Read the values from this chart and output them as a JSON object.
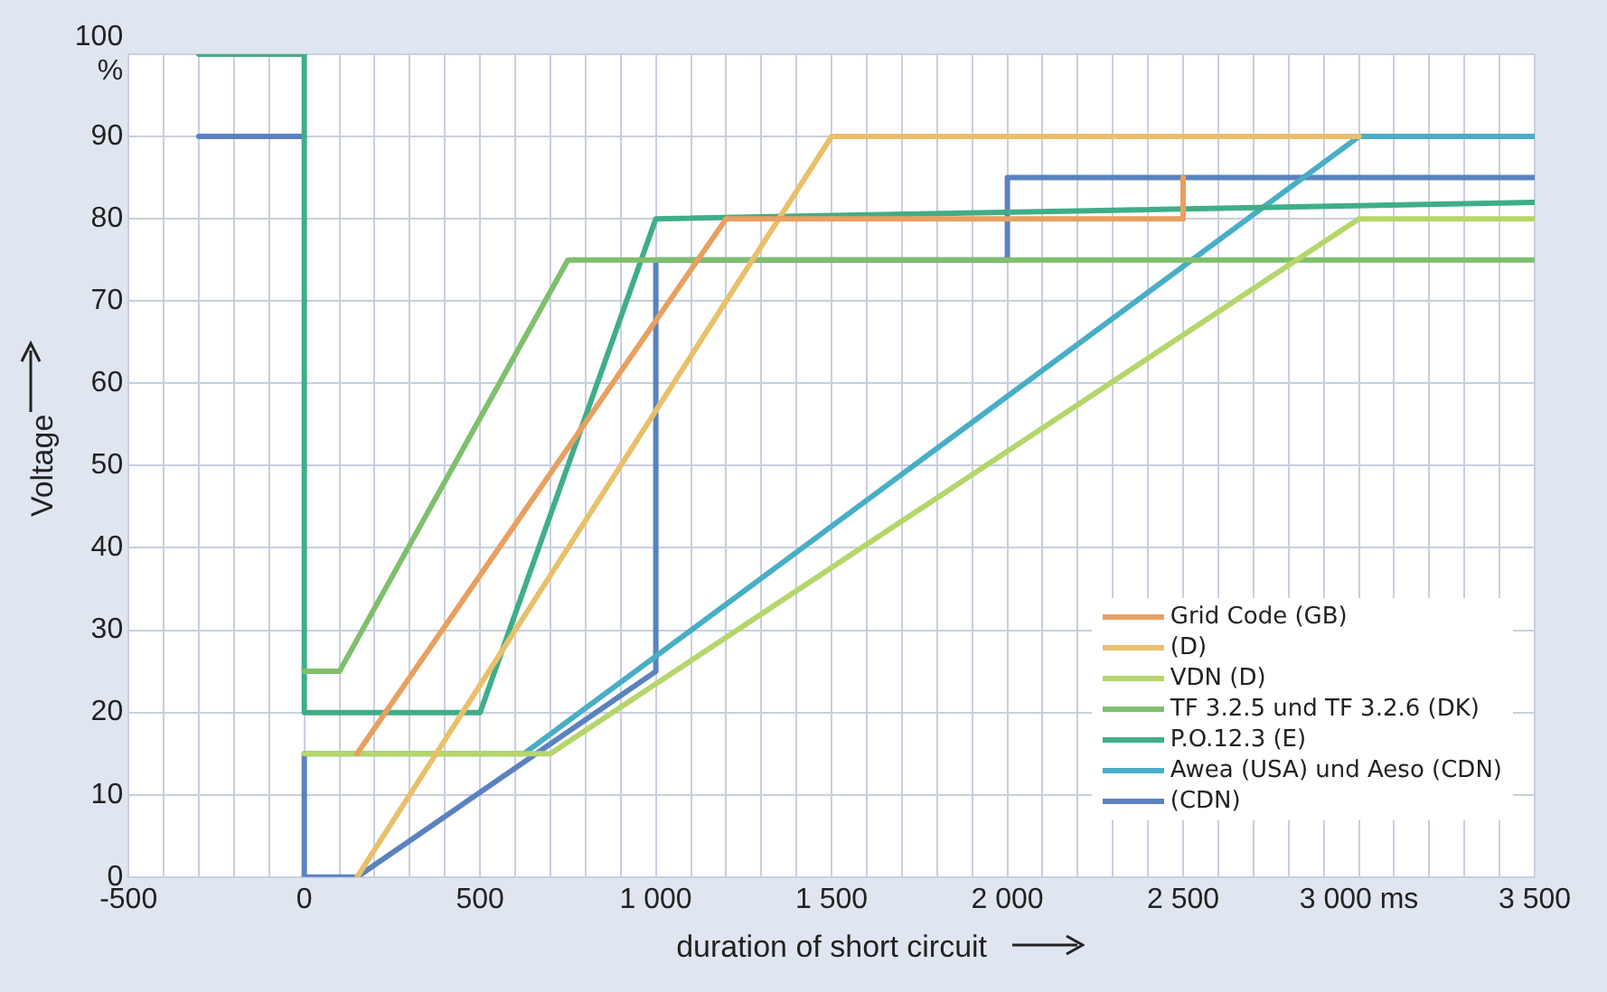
{
  "chart_data": {
    "type": "line",
    "xlabel": "duration of short circuit",
    "ylabel": "Voltage",
    "xlim": [
      -500,
      3500
    ],
    "ylim": [
      0,
      100
    ],
    "xticks": [
      -500,
      {
        "value": -400,
        "label": null
      },
      {
        "value": -300,
        "label": null
      },
      {
        "value": -200,
        "label": null
      },
      {
        "value": -100,
        "label": null
      },
      0,
      {
        "value": 100,
        "label": null
      },
      {
        "value": 200,
        "label": null
      },
      {
        "value": 300,
        "label": null
      },
      {
        "value": 400,
        "label": null
      },
      500,
      {
        "value": 600,
        "label": null
      },
      {
        "value": 700,
        "label": null
      },
      {
        "value": 800,
        "label": null
      },
      {
        "value": 900,
        "label": null
      },
      {
        "value": 1000,
        "label": "1 000"
      },
      {
        "value": 1100,
        "label": null
      },
      {
        "value": 1200,
        "label": null
      },
      {
        "value": 1300,
        "label": null
      },
      {
        "value": 1400,
        "label": null
      },
      {
        "value": 1500,
        "label": "1 500"
      },
      {
        "value": 1600,
        "label": null
      },
      {
        "value": 1700,
        "label": null
      },
      {
        "value": 1800,
        "label": null
      },
      {
        "value": 1900,
        "label": null
      },
      {
        "value": 2000,
        "label": "2 000"
      },
      {
        "value": 2100,
        "label": null
      },
      {
        "value": 2200,
        "label": null
      },
      {
        "value": 2300,
        "label": null
      },
      {
        "value": 2400,
        "label": null
      },
      {
        "value": 2500,
        "label": "2 500"
      },
      {
        "value": 2600,
        "label": null
      },
      {
        "value": 2700,
        "label": null
      },
      {
        "value": 2800,
        "label": null
      },
      {
        "value": 2900,
        "label": null
      },
      {
        "value": 3000,
        "label": "3 000 ms"
      },
      {
        "value": 3100,
        "label": null
      },
      {
        "value": 3200,
        "label": null
      },
      {
        "value": 3300,
        "label": null
      },
      {
        "value": 3400,
        "label": null
      },
      {
        "value": 3500,
        "label": "3 500"
      }
    ],
    "yticks": [
      0,
      10,
      20,
      30,
      40,
      50,
      60,
      70,
      80,
      90,
      {
        "value": 100,
        "label": "100\n%"
      }
    ],
    "grid": true,
    "legend": "bottom right",
    "marker": "none",
    "line_style": "solid",
    "series": [
      {
        "name": "Grid Code (GB)",
        "color": "#e8a060",
        "x": [
          150,
          1200,
          2500,
          2500
        ],
        "values": [
          15,
          80,
          80,
          85
        ]
      },
      {
        "name": "(D)",
        "color": "#e9c06a",
        "x": [
          150,
          1500,
          3000
        ],
        "values": [
          0,
          90,
          90
        ]
      },
      {
        "name": "VDN (D)",
        "color": "#b5d66a",
        "x": [
          0,
          700,
          3000,
          3500
        ],
        "values": [
          15,
          15,
          80,
          80
        ]
      },
      {
        "name": "TF 3.2.5 und TF 3.2.6 (DK)",
        "color": "#7fbf6e",
        "x": [
          0,
          100,
          750,
          3500
        ],
        "values": [
          25,
          25,
          75,
          75
        ]
      },
      {
        "name": "P.O.12.3 (E)",
        "color": "#3fae88",
        "x": [
          -300,
          0,
          0,
          500,
          1000,
          3500
        ],
        "values": [
          100,
          100,
          20,
          20,
          80,
          82
        ]
      },
      {
        "name": "Awea (USA) und Aeso (CDN)",
        "color": "#48aec6",
        "x": [
          0,
          625,
          3000,
          3500
        ],
        "values": [
          15,
          15,
          90,
          90
        ]
      },
      {
        "name": "(CDN)",
        "color": "#5b82c0",
        "x": [
          -300,
          0,
          null,
          0,
          0,
          150,
          1000,
          1000,
          2000,
          2000,
          3500
        ],
        "values": [
          90,
          90,
          null,
          15,
          0,
          0,
          25,
          75,
          75,
          85,
          85
        ]
      }
    ]
  }
}
